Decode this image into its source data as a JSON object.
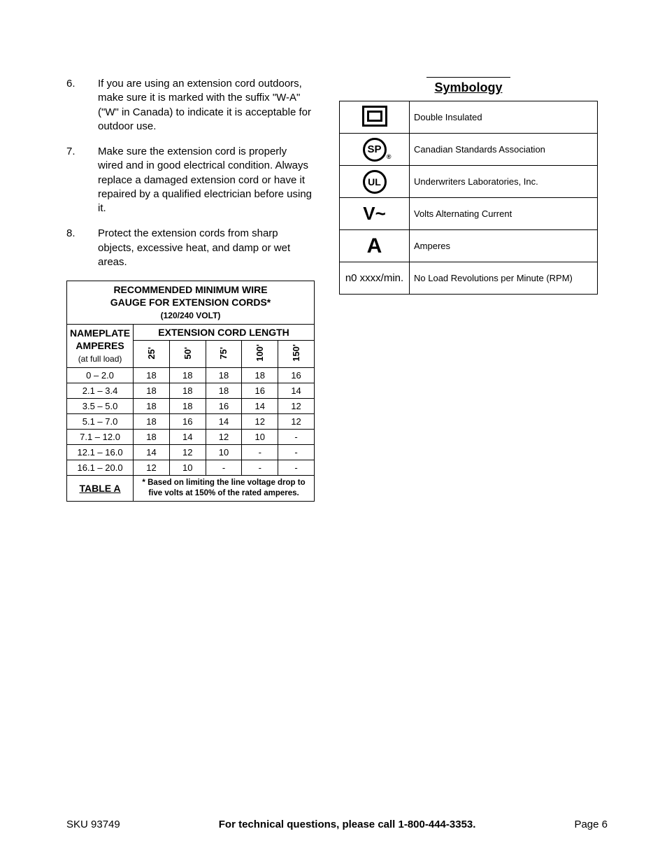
{
  "list": [
    {
      "num": "6.",
      "text": "If you are using an extension cord outdoors, make sure it is marked with the suffix \"W-A\" (\"W\" in Canada) to indicate it is acceptable for outdoor use."
    },
    {
      "num": "7.",
      "text": "Make sure the extension cord is properly wired and in good electrical condition.  Always replace a damaged extension cord or have it repaired by a qualified electrician before using it."
    },
    {
      "num": "8.",
      "text": "Protect the extension cords from sharp objects, excessive heat, and damp or wet areas."
    }
  ],
  "wire_table": {
    "title_line1": "RECOMMENDED MINIMUM WIRE",
    "title_line2": "GAUGE FOR EXTENSION CORDS*",
    "title_sub": "(120/240 VOLT)",
    "nameplate_head1": "NAMEPLATE",
    "nameplate_head2": "AMPERES",
    "nameplate_head3": "(at full load)",
    "ecl_head": "EXTENSION CORD LENGTH",
    "lengths": [
      "25'",
      "50'",
      "75'",
      "100'",
      "150'"
    ],
    "rows": [
      {
        "amps": "0 – 2.0",
        "g": [
          "18",
          "18",
          "18",
          "18",
          "16"
        ]
      },
      {
        "amps": "2.1 – 3.4",
        "g": [
          "18",
          "18",
          "18",
          "16",
          "14"
        ]
      },
      {
        "amps": "3.5 – 5.0",
        "g": [
          "18",
          "18",
          "16",
          "14",
          "12"
        ]
      },
      {
        "amps": "5.1 – 7.0",
        "g": [
          "18",
          "16",
          "14",
          "12",
          "12"
        ]
      },
      {
        "amps": "7.1 – 12.0",
        "g": [
          "18",
          "14",
          "12",
          "10",
          "-"
        ]
      },
      {
        "amps": "12.1 – 16.0",
        "g": [
          "14",
          "12",
          "10",
          "-",
          "-"
        ]
      },
      {
        "amps": "16.1 – 20.0",
        "g": [
          "12",
          "10",
          "-",
          "-",
          "-"
        ]
      }
    ],
    "table_label": "TABLE A",
    "footnote": "* Based on limiting the line voltage drop to five volts at 150% of the rated amperes."
  },
  "symbology": {
    "title": "Symbology",
    "rows": [
      {
        "icon_text": "",
        "desc": "Double Insulated"
      },
      {
        "icon_text": "SP",
        "desc": "Canadian Standards Association"
      },
      {
        "icon_text": "UL",
        "desc": "Underwriters Laboratories, Inc."
      },
      {
        "icon_text": "V~",
        "desc": "Volts Alternating Current"
      },
      {
        "icon_text": "A",
        "desc": "Amperes"
      },
      {
        "icon_text": "n0 xxxx/min.",
        "desc": "No Load Revolutions per Minute (RPM)"
      }
    ]
  },
  "footer": {
    "sku": "SKU 93749",
    "center": "For technical questions, please call 1-800-444-3353.",
    "page": "Page 6"
  }
}
